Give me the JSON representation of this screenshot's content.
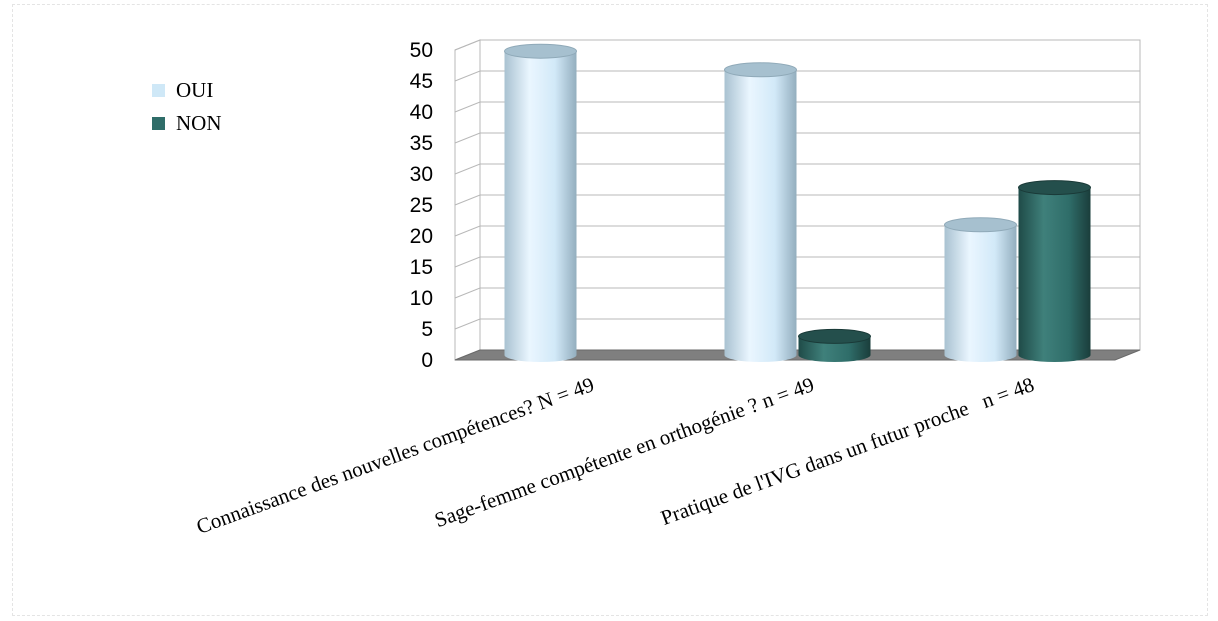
{
  "chart_data": {
    "type": "bar",
    "categories": [
      "Connaissance des nouvelles compétences? N = 49",
      "Sage-femme compétente en orthogénie ? n = 49",
      "Pratique de l'IVG dans un futur proche   n = 48"
    ],
    "series": [
      {
        "name": "OUI",
        "values": [
          49,
          46,
          21
        ],
        "color": "#cfe8f7"
      },
      {
        "name": "NON",
        "values": [
          0,
          3,
          27
        ],
        "color": "#2f6d69"
      }
    ],
    "ylim": [
      0,
      50
    ],
    "yticks": [
      0,
      5,
      10,
      15,
      20,
      25,
      30,
      35,
      40,
      45,
      50
    ],
    "grid": true,
    "style": "3d-cylinder",
    "legend": "left"
  }
}
